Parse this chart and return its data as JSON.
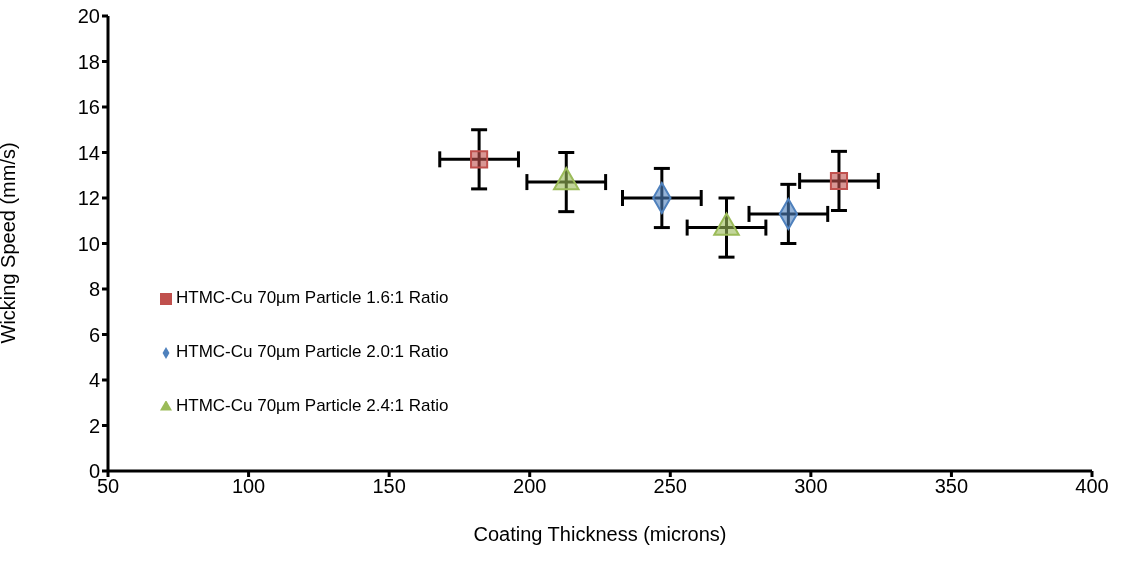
{
  "chart_data": {
    "type": "scatter",
    "xlabel": "Coating Thickness (microns)",
    "ylabel": "Wicking Speed (mm/s)",
    "xlim": [
      50,
      400
    ],
    "xticks": [
      50,
      100,
      150,
      200,
      250,
      300,
      350,
      400
    ],
    "ylim": [
      0,
      20
    ],
    "yticks": [
      0,
      2,
      4,
      6,
      8,
      10,
      12,
      14,
      16,
      18,
      20
    ],
    "grid": false,
    "legend": "left",
    "series": [
      {
        "name": "HTMC-Cu 70µm Particle 1.6:1 Ratio",
        "color": "#c0504d",
        "marker": "square",
        "x": [
          182,
          310
        ],
        "values": [
          13.7,
          12.75
        ],
        "errors": [
          1.3,
          1.3
        ],
        "xerrors": [
          14,
          14
        ]
      },
      {
        "name": "HTMC-Cu 70µm Particle 2.0:1 Ratio",
        "color": "#4f81bd",
        "marker": "diamond",
        "x": [
          247,
          292
        ],
        "values": [
          12.0,
          11.3
        ],
        "errors": [
          1.3,
          1.3
        ],
        "xerrors": [
          14,
          14
        ]
      },
      {
        "name": "HTMC-Cu 70µm Particle 2.4:1 Ratio",
        "color": "#9bbb59",
        "marker": "triangle",
        "x": [
          213,
          270
        ],
        "values": [
          12.7,
          10.7
        ],
        "errors": [
          1.3,
          1.3
        ],
        "xerrors": [
          14,
          14
        ]
      }
    ]
  }
}
